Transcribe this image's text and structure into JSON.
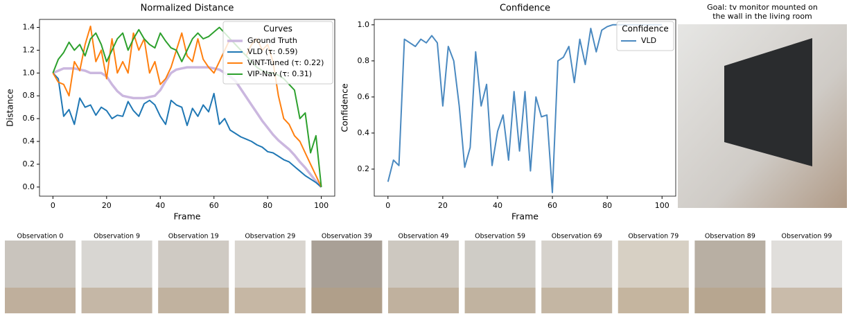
{
  "chart_data": [
    {
      "type": "line",
      "title": "Normalized Distance",
      "xlabel": "Frame",
      "ylabel": "Distance",
      "x": [
        0,
        2,
        4,
        6,
        8,
        10,
        12,
        14,
        16,
        18,
        20,
        22,
        24,
        26,
        28,
        30,
        32,
        34,
        36,
        38,
        40,
        42,
        44,
        46,
        48,
        50,
        52,
        54,
        56,
        58,
        60,
        62,
        64,
        66,
        68,
        70,
        72,
        74,
        76,
        78,
        80,
        82,
        84,
        86,
        88,
        90,
        92,
        94,
        96,
        98,
        100
      ],
      "series": [
        {
          "name": "Ground Truth",
          "color": "#cbb7df",
          "width": 3.5,
          "values": [
            1.0,
            1.02,
            1.04,
            1.04,
            1.04,
            1.03,
            1.02,
            1.0,
            1.0,
            1.0,
            0.97,
            0.9,
            0.84,
            0.8,
            0.79,
            0.78,
            0.78,
            0.78,
            0.79,
            0.8,
            0.85,
            0.93,
            1.0,
            1.03,
            1.04,
            1.05,
            1.05,
            1.05,
            1.05,
            1.05,
            1.04,
            1.03,
            1.0,
            0.97,
            0.93,
            0.86,
            0.79,
            0.72,
            0.65,
            0.58,
            0.52,
            0.46,
            0.41,
            0.37,
            0.33,
            0.28,
            0.22,
            0.17,
            0.11,
            0.05,
            0.0
          ]
        },
        {
          "name": "VLD (τ: 0.59)",
          "color": "#1f77b4",
          "width": 2,
          "values": [
            1.0,
            0.95,
            0.62,
            0.68,
            0.55,
            0.78,
            0.7,
            0.72,
            0.63,
            0.7,
            0.67,
            0.6,
            0.63,
            0.62,
            0.75,
            0.67,
            0.62,
            0.73,
            0.76,
            0.72,
            0.62,
            0.55,
            0.76,
            0.72,
            0.7,
            0.54,
            0.69,
            0.62,
            0.72,
            0.66,
            0.82,
            0.55,
            0.6,
            0.5,
            0.47,
            0.44,
            0.42,
            0.4,
            0.37,
            0.35,
            0.31,
            0.3,
            0.27,
            0.24,
            0.22,
            0.18,
            0.14,
            0.1,
            0.07,
            0.04,
            0.0
          ]
        },
        {
          "name": "ViNT-Tuned (τ: 0.22)",
          "color": "#ff7f0e",
          "width": 2,
          "values": [
            1.0,
            0.92,
            0.9,
            0.8,
            1.1,
            1.02,
            1.25,
            1.41,
            1.1,
            1.2,
            0.95,
            1.3,
            1.0,
            1.1,
            1.0,
            1.35,
            1.2,
            1.3,
            1.0,
            1.1,
            0.9,
            0.95,
            1.05,
            1.2,
            1.35,
            1.15,
            1.1,
            1.3,
            1.12,
            1.05,
            1.0,
            1.1,
            1.2,
            1.3,
            1.25,
            1.2,
            1.15,
            1.25,
            1.3,
            1.2,
            1.25,
            1.1,
            0.8,
            0.6,
            0.55,
            0.45,
            0.4,
            0.3,
            0.2,
            0.1,
            0.0
          ]
        },
        {
          "name": "VIP-Nav (τ: 0.31)",
          "color": "#2ca02c",
          "width": 2,
          "values": [
            1.0,
            1.12,
            1.18,
            1.27,
            1.2,
            1.25,
            1.15,
            1.3,
            1.35,
            1.25,
            1.1,
            1.2,
            1.3,
            1.35,
            1.2,
            1.3,
            1.38,
            1.3,
            1.25,
            1.22,
            1.35,
            1.28,
            1.22,
            1.2,
            1.1,
            1.2,
            1.3,
            1.35,
            1.3,
            1.32,
            1.36,
            1.4,
            1.35,
            1.3,
            1.25,
            1.2,
            1.15,
            1.1,
            1.05,
            1.02,
            1.0,
            1.0,
            0.98,
            0.95,
            0.9,
            0.85,
            0.6,
            0.65,
            0.3,
            0.45,
            0.0
          ]
        }
      ],
      "xlim": [
        -5,
        105
      ],
      "ylim": [
        -0.08,
        1.47
      ],
      "xticks": [
        0,
        20,
        40,
        60,
        80,
        100
      ],
      "yticks": [
        {
          "value": 0,
          "label": "0.0"
        },
        0.2,
        0.4,
        0.6,
        0.8,
        {
          "value": 1,
          "label": "1.0"
        },
        1.2,
        1.4
      ],
      "legend_title": "Curves",
      "legend": "upper right",
      "grid": false
    },
    {
      "type": "line",
      "title": "Confidence",
      "xlabel": "Frame",
      "ylabel": "Confidence",
      "x": [
        0,
        2,
        4,
        6,
        8,
        10,
        12,
        14,
        16,
        18,
        20,
        22,
        24,
        26,
        28,
        30,
        32,
        34,
        36,
        38,
        40,
        42,
        44,
        46,
        48,
        50,
        52,
        54,
        56,
        58,
        60,
        62,
        64,
        66,
        68,
        70,
        72,
        74,
        76,
        78,
        80,
        82,
        84,
        86,
        88,
        90,
        92,
        94,
        96,
        98,
        100
      ],
      "series": [
        {
          "name": "VLD",
          "color": "#4a89c0",
          "width": 2,
          "values": [
            0.13,
            0.25,
            0.22,
            0.92,
            0.9,
            0.88,
            0.92,
            0.9,
            0.94,
            0.9,
            0.55,
            0.88,
            0.8,
            0.55,
            0.21,
            0.32,
            0.85,
            0.55,
            0.67,
            0.22,
            0.41,
            0.5,
            0.25,
            0.63,
            0.3,
            0.63,
            0.19,
            0.6,
            0.49,
            0.5,
            0.07,
            0.8,
            0.82,
            0.88,
            0.68,
            0.92,
            0.78,
            0.98,
            0.85,
            0.97,
            0.99,
            1.0,
            1.0,
            1.0,
            1.0,
            1.0,
            1.0,
            1.0,
            1.0,
            1.0,
            1.0
          ]
        }
      ],
      "xlim": [
        -5,
        105
      ],
      "ylim": [
        0.05,
        1.03
      ],
      "xticks": [
        0,
        20,
        40,
        60,
        80,
        100
      ],
      "yticks": [
        0.2,
        0.4,
        0.6,
        0.8,
        {
          "value": 1,
          "label": "1.0"
        }
      ],
      "legend_title": "Confidence",
      "legend": "upper right",
      "grid": false
    }
  ],
  "goal": {
    "caption_lines": [
      "Goal: tv monitor mounted on",
      "the wall in the living room"
    ]
  },
  "observations": [
    "Observation 0",
    "Observation 9",
    "Observation 19",
    "Observation 29",
    "Observation 39",
    "Observation 49",
    "Observation 59",
    "Observation 69",
    "Observation 79",
    "Observation 89",
    "Observation 99"
  ]
}
